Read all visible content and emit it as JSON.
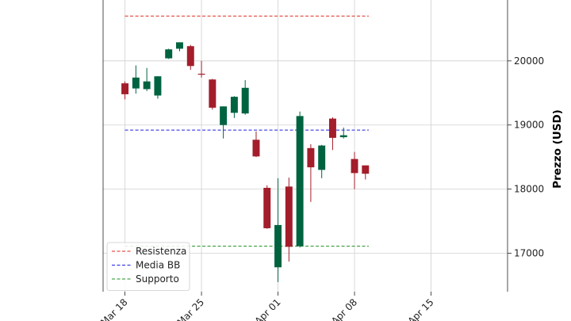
{
  "chart_data": {
    "type": "candlestick",
    "ylabel": "Prezzo (USD)",
    "ylim": [
      16400,
      20950
    ],
    "xlim": [
      "2024-03-16",
      "2024-04-22"
    ],
    "yticks": [
      17000,
      18000,
      19000,
      20000
    ],
    "xticks": [
      {
        "date": "2024-03-18",
        "label": "Mar 18"
      },
      {
        "date": "2024-03-25",
        "label": "Mar 25"
      },
      {
        "date": "2024-04-01",
        "label": "Apr 01"
      },
      {
        "date": "2024-04-08",
        "label": "Apr 08"
      },
      {
        "date": "2024-04-15",
        "label": "Apr 15"
      }
    ],
    "grid": true,
    "colors": {
      "up": "#006340",
      "down": "#a31d2a"
    },
    "candles": [
      {
        "date": "2024-03-18",
        "open": 19650,
        "high": 19680,
        "low": 19400,
        "close": 19480
      },
      {
        "date": "2024-03-19",
        "open": 19570,
        "high": 19930,
        "low": 19490,
        "close": 19740
      },
      {
        "date": "2024-03-20",
        "open": 19560,
        "high": 19890,
        "low": 19530,
        "close": 19680
      },
      {
        "date": "2024-03-21",
        "open": 19460,
        "high": 19760,
        "low": 19410,
        "close": 19760
      },
      {
        "date": "2024-03-22",
        "open": 20040,
        "high": 20190,
        "low": 20030,
        "close": 20180
      },
      {
        "date": "2024-03-23",
        "open": 20190,
        "high": 20290,
        "low": 20150,
        "close": 20290
      },
      {
        "date": "2024-03-24",
        "open": 20230,
        "high": 20250,
        "low": 19860,
        "close": 19920
      },
      {
        "date": "2024-03-25",
        "open": 19800,
        "high": 20000,
        "low": 19740,
        "close": 19790
      },
      {
        "date": "2024-03-26",
        "open": 19710,
        "high": 19720,
        "low": 19240,
        "close": 19270
      },
      {
        "date": "2024-03-27",
        "open": 19000,
        "high": 19290,
        "low": 18790,
        "close": 19290
      },
      {
        "date": "2024-03-28",
        "open": 19190,
        "high": 19450,
        "low": 19110,
        "close": 19440
      },
      {
        "date": "2024-03-29",
        "open": 19180,
        "high": 19700,
        "low": 19160,
        "close": 19580
      },
      {
        "date": "2024-03-30",
        "open": 18770,
        "high": 18900,
        "low": 18500,
        "close": 18510
      },
      {
        "date": "2024-03-31",
        "open": 18020,
        "high": 18060,
        "low": 17380,
        "close": 17390
      },
      {
        "date": "2024-04-01",
        "open": 16780,
        "high": 18170,
        "low": 16550,
        "close": 17440
      },
      {
        "date": "2024-04-02",
        "open": 18040,
        "high": 18180,
        "low": 16870,
        "close": 17100
      },
      {
        "date": "2024-04-03",
        "open": 17110,
        "high": 19210,
        "low": 17090,
        "close": 19140
      },
      {
        "date": "2024-04-04",
        "open": 18640,
        "high": 18700,
        "low": 17800,
        "close": 18340
      },
      {
        "date": "2024-04-05",
        "open": 18300,
        "high": 18690,
        "low": 18170,
        "close": 18680
      },
      {
        "date": "2024-04-06",
        "open": 19100,
        "high": 19120,
        "low": 18610,
        "close": 18800
      },
      {
        "date": "2024-04-07",
        "open": 18810,
        "high": 18960,
        "low": 18790,
        "close": 18840
      },
      {
        "date": "2024-04-08",
        "open": 18470,
        "high": 18580,
        "low": 18000,
        "close": 18250
      },
      {
        "date": "2024-04-09",
        "open": 18370,
        "high": 18370,
        "low": 18150,
        "close": 18240
      }
    ],
    "lines": [
      {
        "name": "Resistenza",
        "value": 20700,
        "color": "#e0281d"
      },
      {
        "name": "Media BB",
        "value": 18920,
        "color": "#1f1fe0"
      },
      {
        "name": "Supporto",
        "value": 17110,
        "color": "#1f8f1f"
      }
    ],
    "legend": {
      "placement": "lower-left",
      "entries": [
        "Resistenza",
        "Media BB",
        "Supporto"
      ]
    }
  }
}
